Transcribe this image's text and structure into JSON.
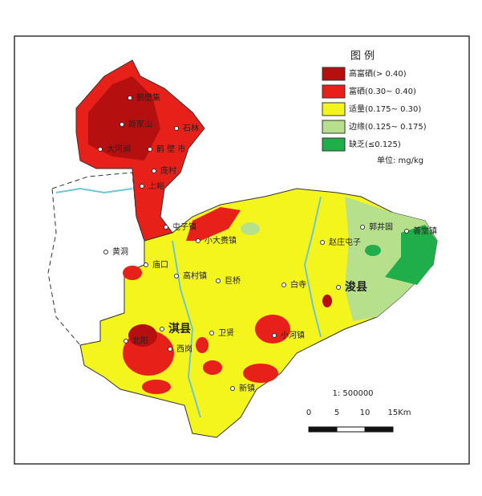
{
  "legend": {
    "title": "图 例",
    "items": [
      {
        "label": "高富硒(> 0.40)",
        "color": "#b50f0f"
      },
      {
        "label": "富硒(0.30~ 0.40)",
        "color": "#e8201a"
      },
      {
        "label": "适量(0.175~ 0.30)",
        "color": "#f5f51e"
      },
      {
        "label": "边缘(0.125~ 0.175)",
        "color": "#b6e08c"
      },
      {
        "label": "缺乏(≤0.125)",
        "color": "#1fae4a"
      }
    ],
    "unit": "单位: mg/kg"
  },
  "scale": {
    "ratio": "1: 500000",
    "ticks": [
      "0",
      "5",
      "10",
      "15Km"
    ]
  },
  "places": [
    "鹤壁集",
    "姬家山",
    "大河涧",
    "鹤 壁 市",
    "石林",
    "庞村",
    "上峪",
    "屯子镇",
    "小大赉镇",
    "黄洞",
    "庙口",
    "高村镇",
    "巨桥",
    "白寺",
    "赵庄屯子",
    "郭井固",
    "善堂镇",
    "浚县",
    "淇县",
    "北阳",
    "西岗",
    "卫贤",
    "小河镇",
    "新镇"
  ]
}
